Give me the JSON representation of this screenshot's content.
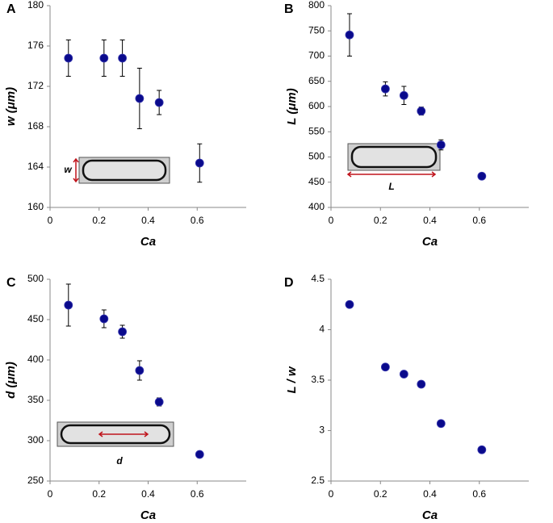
{
  "chart_data": [
    {
      "type": "scatter",
      "panel_label": "A",
      "x_label": "Ca",
      "y_label": "w (μm)",
      "inset_label": "w",
      "x": [
        0.075,
        0.22,
        0.295,
        0.365,
        0.445,
        0.61
      ],
      "values": [
        174.8,
        174.8,
        174.8,
        170.8,
        170.4,
        164.4
      ],
      "errors": [
        1.8,
        1.8,
        1.8,
        3.0,
        1.2,
        1.9
      ],
      "color": "#0a0a8c",
      "xlim": [
        0,
        0.8
      ],
      "xticks": [
        0,
        0.2,
        0.4,
        0.6
      ],
      "ylim": [
        160,
        180
      ],
      "yticks": [
        160,
        164,
        168,
        172,
        176,
        180
      ]
    },
    {
      "type": "scatter",
      "panel_label": "B",
      "x_label": "Ca",
      "y_label": "L (μm)",
      "inset_label": "L",
      "x": [
        0.075,
        0.22,
        0.295,
        0.365,
        0.445,
        0.61
      ],
      "values": [
        742,
        635,
        622,
        591,
        524,
        462
      ],
      "errors": [
        42,
        14,
        18,
        8,
        10,
        6
      ],
      "color": "#0a0a8c",
      "xlim": [
        0,
        0.8
      ],
      "xticks": [
        0,
        0.2,
        0.4,
        0.6
      ],
      "ylim": [
        400,
        800
      ],
      "yticks": [
        400,
        450,
        500,
        550,
        600,
        650,
        700,
        750,
        800
      ]
    },
    {
      "type": "scatter",
      "panel_label": "C",
      "x_label": "Ca",
      "y_label": "d (μm)",
      "inset_label": "d",
      "x": [
        0.075,
        0.22,
        0.295,
        0.365,
        0.445,
        0.61
      ],
      "values": [
        468,
        451,
        435,
        387,
        348,
        283
      ],
      "errors": [
        26,
        11,
        8,
        12,
        5,
        4
      ],
      "color": "#0a0a8c",
      "xlim": [
        0,
        0.8
      ],
      "xticks": [
        0,
        0.2,
        0.4,
        0.6
      ],
      "ylim": [
        250,
        500
      ],
      "yticks": [
        250,
        300,
        350,
        400,
        450,
        500
      ]
    },
    {
      "type": "scatter",
      "panel_label": "D",
      "x_label": "Ca",
      "y_label": "L / w",
      "x": [
        0.075,
        0.22,
        0.295,
        0.365,
        0.445,
        0.61
      ],
      "values": [
        4.25,
        3.63,
        3.56,
        3.46,
        3.07,
        2.81
      ],
      "color": "#0a0a8c",
      "xlim": [
        0,
        0.8
      ],
      "xticks": [
        0,
        0.2,
        0.4,
        0.6
      ],
      "ylim": [
        2.5,
        4.5
      ],
      "yticks": [
        2.5,
        3,
        3.5,
        4,
        4.5
      ]
    }
  ]
}
